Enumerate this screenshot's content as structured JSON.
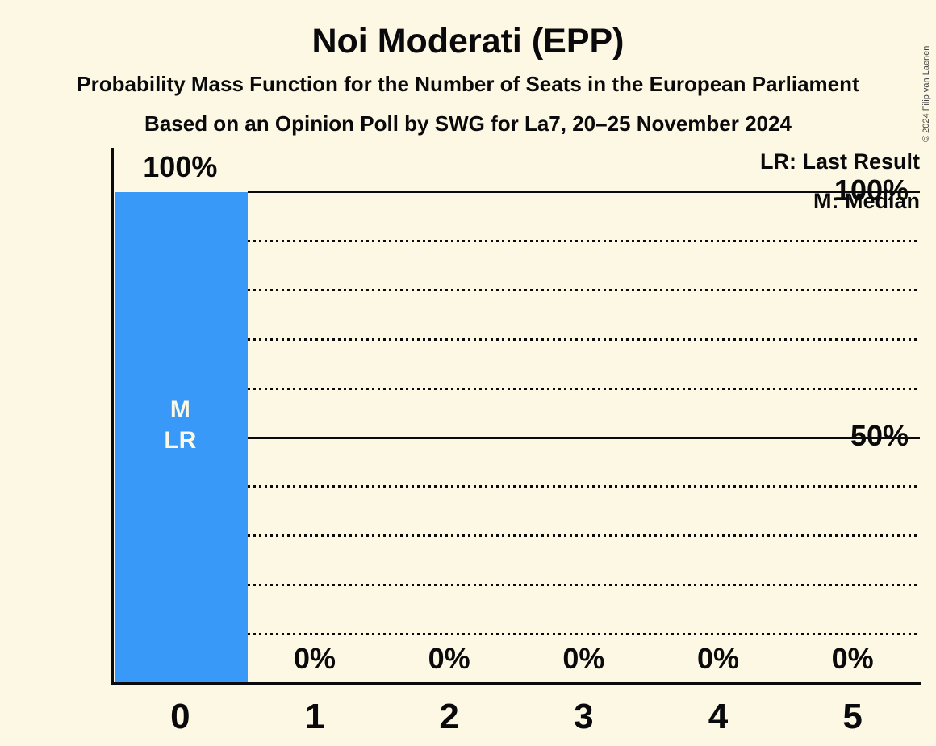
{
  "title": "Noi Moderati (EPP)",
  "subtitle1": "Probability Mass Function for the Number of Seats in the European Parliament",
  "subtitle2": "Based on an Opinion Poll by SWG for La7, 20–25 November 2024",
  "copyright": "© 2024 Filip van Laenen",
  "legend": {
    "lr": "LR: Last Result",
    "m": "M: Median"
  },
  "y_axis": {
    "labels": [
      {
        "text": "100%",
        "value": 100
      },
      {
        "text": "50%",
        "value": 50
      }
    ]
  },
  "chart_data": {
    "type": "bar",
    "title": "Noi Moderati (EPP)",
    "categories": [
      "0",
      "1",
      "2",
      "3",
      "4",
      "5"
    ],
    "values": [
      100,
      0,
      0,
      0,
      0,
      0
    ],
    "value_labels": [
      "100%",
      "0%",
      "0%",
      "0%",
      "0%",
      "0%"
    ],
    "bar_annotations": [
      {
        "category": "0",
        "lines": [
          "M",
          "LR"
        ]
      }
    ],
    "ylim": [
      0,
      100
    ],
    "gridlines_pct": [
      10,
      20,
      30,
      40,
      50,
      60,
      70,
      80,
      90,
      100
    ],
    "solid_gridlines_pct": [
      50,
      100
    ],
    "legend_position": "top-right",
    "grid": true
  },
  "colors": {
    "background": "#FCF8E3",
    "bar": "#3999F8",
    "text": "#0A0A0C",
    "bar_label": "#FCF8E3"
  }
}
